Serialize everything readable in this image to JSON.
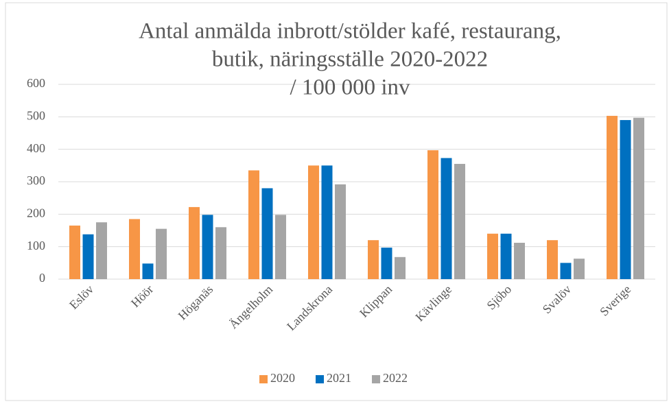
{
  "chart_data": {
    "type": "bar",
    "title": [
      "Antal anmälda inbrott/stölder kafé, restaurang,",
      "butik, näringsställe 2020-2022",
      "/ 100 000 inv"
    ],
    "categories": [
      "Eslöv",
      "Höör",
      "Höganäs",
      "Ängelholm",
      "Landskrona",
      "Klippan",
      "Kävlinge",
      "Sjöbo",
      "Svalöv",
      "Sverige"
    ],
    "series": [
      {
        "name": "2020",
        "color": "#f79646",
        "values": [
          165,
          185,
          222,
          335,
          350,
          120,
          397,
          140,
          120,
          503
        ]
      },
      {
        "name": "2021",
        "color": "#0070c0",
        "values": [
          138,
          48,
          198,
          280,
          350,
          97,
          373,
          140,
          50,
          490
        ]
      },
      {
        "name": "2022",
        "color": "#a5a5a5",
        "values": [
          175,
          155,
          160,
          198,
          292,
          68,
          355,
          112,
          63,
          497
        ]
      }
    ],
    "ylim": [
      0,
      600
    ],
    "yticks": [
      0,
      100,
      200,
      300,
      400,
      500,
      600
    ],
    "grid": true,
    "legend": "bottom"
  }
}
